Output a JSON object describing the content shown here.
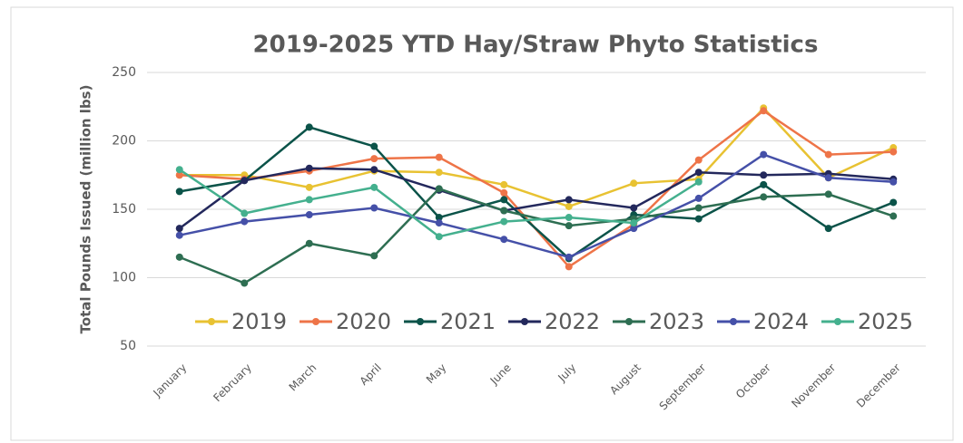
{
  "chart_data": {
    "type": "line",
    "title": "2019-2025 YTD Hay/Straw Phyto Statistics",
    "ylabel": "Total Pounds Issued (million lbs)",
    "categories": [
      "January",
      "February",
      "March",
      "April",
      "May",
      "June",
      "July",
      "August",
      "September",
      "October",
      "November",
      "December"
    ],
    "ylim": [
      50,
      250
    ],
    "yticks": [
      50,
      100,
      150,
      200,
      250
    ],
    "grid": true,
    "legend": "bottom",
    "series": [
      {
        "name": "2019",
        "color": "#e8c232",
        "values": [
          175,
          175,
          166,
          178,
          177,
          168,
          152,
          169,
          172,
          224,
          173,
          195
        ]
      },
      {
        "name": "2020",
        "color": "#ee7448",
        "values": [
          175,
          172,
          178,
          187,
          188,
          162,
          108,
          139,
          186,
          222,
          190,
          192
        ]
      },
      {
        "name": "2021",
        "color": "#0b5349",
        "values": [
          163,
          171,
          210,
          196,
          144,
          157,
          114,
          146,
          143,
          168,
          136,
          155
        ]
      },
      {
        "name": "2022",
        "color": "#23285c",
        "values": [
          136,
          171,
          180,
          179,
          164,
          149,
          157,
          151,
          177,
          175,
          176,
          172
        ]
      },
      {
        "name": "2023",
        "color": "#2e6e52",
        "values": [
          115,
          96,
          125,
          116,
          165,
          149,
          138,
          143,
          151,
          159,
          161,
          145
        ]
      },
      {
        "name": "2024",
        "color": "#4550a8",
        "values": [
          131,
          141,
          146,
          151,
          140,
          128,
          115,
          136,
          158,
          190,
          173,
          170
        ]
      },
      {
        "name": "2025",
        "color": "#44b08e",
        "values": [
          179,
          147,
          157,
          166,
          130,
          141,
          144,
          140,
          170,
          null,
          null,
          null
        ]
      }
    ]
  }
}
